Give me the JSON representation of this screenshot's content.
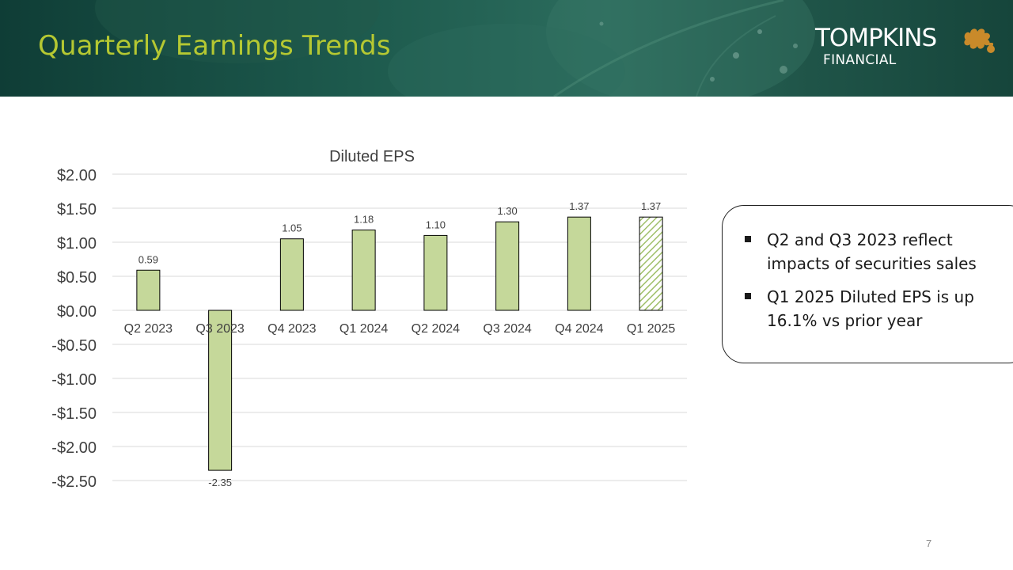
{
  "header": {
    "title": "Quarterly Earnings Trends",
    "logo": {
      "name": "TOMPKINS",
      "subtitle": "FINANCIAL",
      "mark_icon": "oak-leaf-acorn-icon",
      "mark_color": "#c98a2a"
    },
    "title_color": "#b5c832"
  },
  "chart_data": {
    "type": "bar",
    "title": "Diluted EPS",
    "categories": [
      "Q2 2023",
      "Q3 2023",
      "Q4 2023",
      "Q1 2024",
      "Q2 2024",
      "Q3 2024",
      "Q4 2024",
      "Q1 2025"
    ],
    "values": [
      0.59,
      -2.35,
      1.05,
      1.18,
      1.1,
      1.3,
      1.37,
      1.37
    ],
    "data_labels": [
      "0.59",
      "-2.35",
      "1.05",
      "1.18",
      "1.10",
      "1.30",
      "1.37",
      "1.37"
    ],
    "y_ticks": [
      2.0,
      1.5,
      1.0,
      0.5,
      0.0,
      -0.5,
      -1.0,
      -1.5,
      -2.0,
      -2.5
    ],
    "y_tick_labels": [
      "$2.00",
      "$1.50",
      "$1.00",
      "$0.50",
      "$0.00",
      "-$0.50",
      "-$1.00",
      "-$1.50",
      "-$2.00",
      "-$2.50"
    ],
    "ylim": [
      -2.5,
      2.0
    ],
    "grid": true,
    "legend": "none",
    "bar_color": "#c5d89a",
    "bar_outline": "#000000",
    "hatched_categories": [
      "Q1 2025"
    ]
  },
  "callout": {
    "bullets": [
      "Q2 and Q3 2023 reflect impacts of securities sales",
      "Q1 2025 Diluted EPS is up 16.1% vs prior year"
    ]
  },
  "footer": {
    "page_number": "7"
  }
}
